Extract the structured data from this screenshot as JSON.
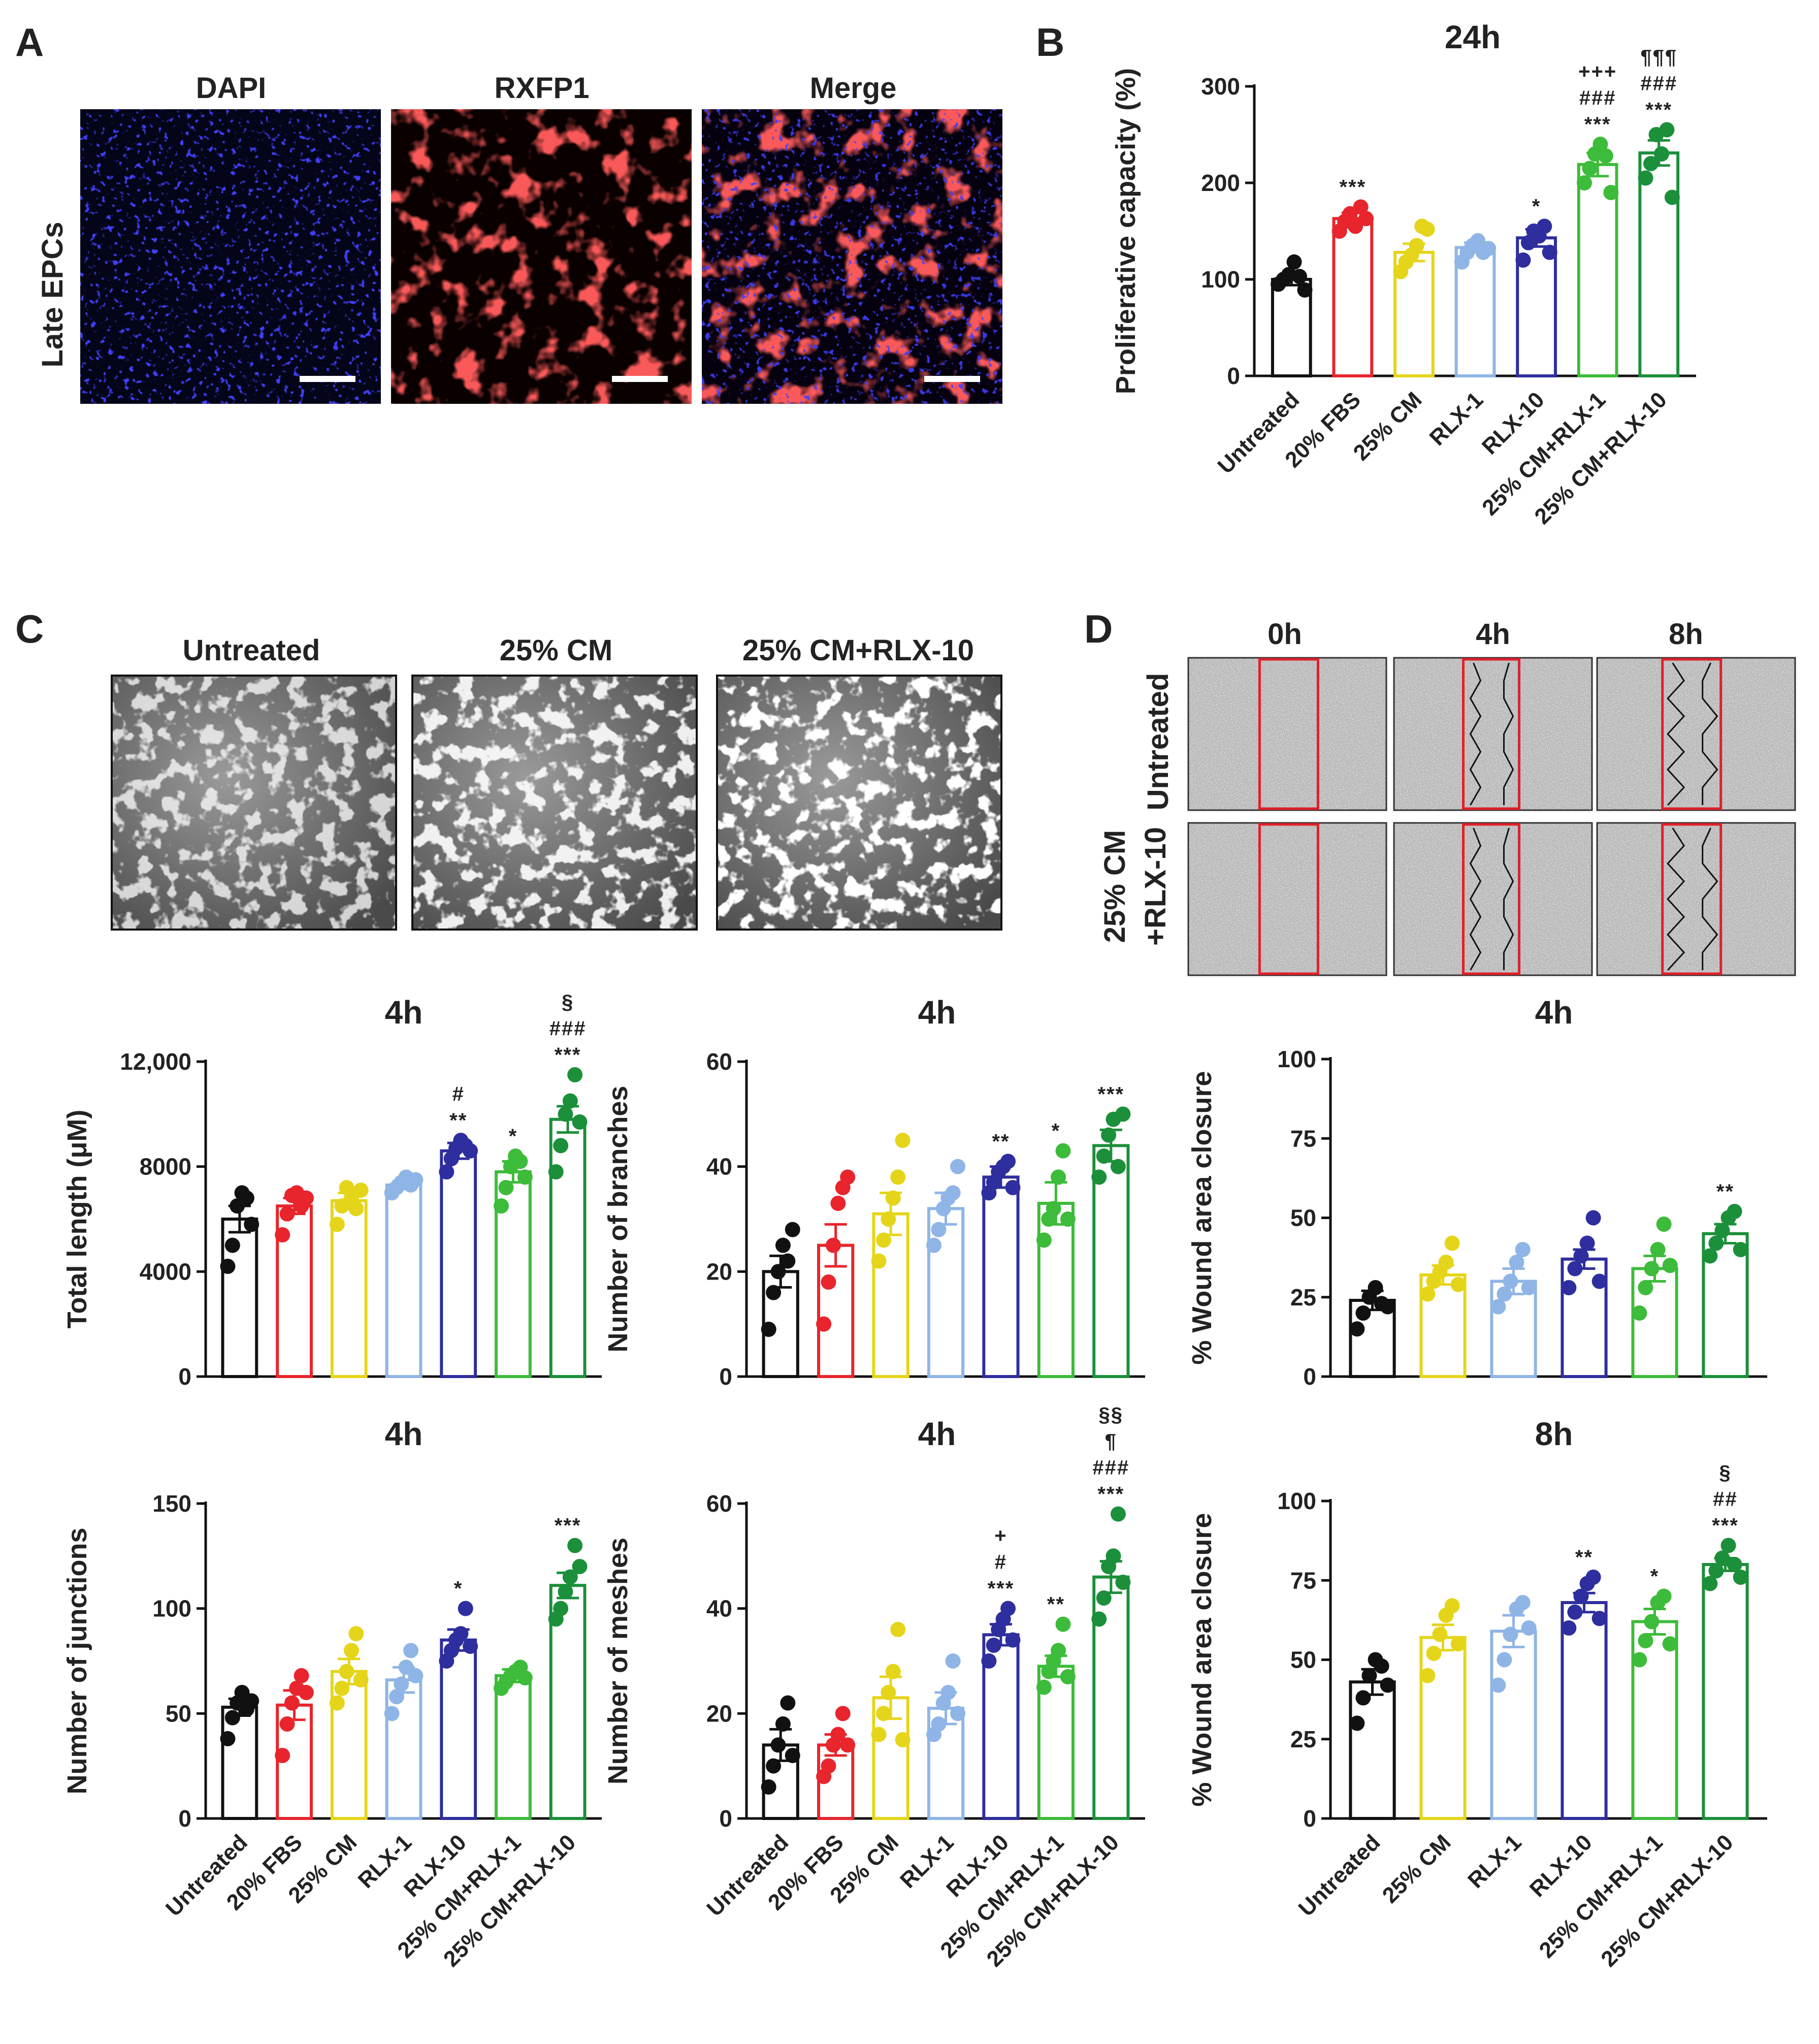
{
  "panels": {
    "A": {
      "letter": "A",
      "row_label": "Late EPCs",
      "image_labels": [
        "DAPI",
        "RXFP1",
        "Merge"
      ]
    },
    "C_images": {
      "letter": "C",
      "image_labels": [
        "Untreated",
        "25%  CM",
        "25%  CM+RLX-10"
      ]
    },
    "D_images": {
      "letter": "D",
      "time_labels": [
        "0h",
        "4h",
        "8h"
      ],
      "row_labels": [
        "Untreated",
        "25% CM",
        "+RLX-10"
      ]
    }
  },
  "colors": {
    "Untreated": "#111111",
    "20% FBS": "#e8252c",
    "25% CM": "#e5d51a",
    "RLX-1": "#8fb5e6",
    "RLX-10": "#2e2e9e",
    "25% CM+RLX-1": "#3dbb3a",
    "25% CM+RLX-10": "#1c8f3a",
    "scratch_box": "#e0202a"
  },
  "chart_data": [
    {
      "id": "B",
      "letter": "B",
      "type": "bar",
      "title": "24h",
      "ylabel": "Proliferative capacity (%)",
      "ylim": [
        0,
        300
      ],
      "yticks": [
        "0",
        "100",
        "200",
        "300"
      ],
      "ytick_values": [
        0,
        100,
        200,
        300
      ],
      "categories": [
        "Untreated",
        "20% FBS",
        "25% CM",
        "RLX-1",
        "RLX-10",
        "25% CM+RLX-1",
        "25% CM+RLX-10"
      ],
      "values": [
        100,
        163,
        128,
        133,
        143,
        219,
        231
      ],
      "sem": [
        6,
        6,
        9,
        5,
        9,
        12,
        13
      ],
      "points": [
        [
          95,
          100,
          105,
          118,
          103,
          89
        ],
        [
          150,
          160,
          168,
          155,
          175,
          163
        ],
        [
          108,
          118,
          125,
          135,
          155,
          152
        ],
        [
          118,
          128,
          135,
          140,
          128,
          132
        ],
        [
          120,
          138,
          150,
          145,
          155,
          128
        ],
        [
          200,
          215,
          230,
          240,
          228,
          190
        ],
        [
          205,
          220,
          250,
          230,
          255,
          185
        ]
      ],
      "significance": [
        [],
        [
          "***"
        ],
        [],
        [],
        [
          "*"
        ],
        [
          "+++",
          "###",
          "***"
        ],
        [
          "¶¶¶",
          "###",
          "***"
        ]
      ]
    },
    {
      "id": "C1",
      "type": "bar",
      "title": "4h",
      "ylabel": "Total length (μM)",
      "ylim": [
        0,
        12000
      ],
      "yticks": [
        "0",
        "4000",
        "8000",
        "12,000"
      ],
      "ytick_values": [
        0,
        4000,
        8000,
        12000
      ],
      "categories": [
        "Untreated",
        "20% FBS",
        "25% CM",
        "RLX-1",
        "RLX-10",
        "25% CM+RLX-1",
        "25% CM+RLX-10"
      ],
      "values": [
        6000,
        6500,
        6700,
        7300,
        8600,
        7800,
        9800
      ],
      "sem": [
        500,
        300,
        300,
        150,
        300,
        400,
        500
      ],
      "points": [
        [
          4200,
          5000,
          6500,
          7000,
          6800,
          5800
        ],
        [
          5400,
          6200,
          6900,
          7000,
          6500,
          6800
        ],
        [
          5800,
          6500,
          7200,
          6800,
          6400,
          7100
        ],
        [
          7000,
          7200,
          7400,
          7600,
          7300,
          7500
        ],
        [
          7800,
          8300,
          8700,
          9000,
          8800,
          8600
        ],
        [
          6500,
          7200,
          8000,
          8400,
          8200,
          7600
        ],
        [
          7800,
          8800,
          10000,
          10500,
          11500,
          9700
        ]
      ],
      "significance": [
        [],
        [],
        [],
        [],
        [
          "#",
          "**"
        ],
        [
          "*"
        ],
        [
          "§",
          "###",
          "***"
        ]
      ]
    },
    {
      "id": "C2",
      "type": "bar",
      "title": "4h",
      "ylabel": "Number of branches",
      "ylim": [
        0,
        60
      ],
      "yticks": [
        "0",
        "20",
        "40",
        "60"
      ],
      "ytick_values": [
        0,
        20,
        40,
        60
      ],
      "categories": [
        "Untreated",
        "20% FBS",
        "25% CM",
        "RLX-1",
        "RLX-10",
        "25% CM+RLX-1",
        "25% CM+RLX-10"
      ],
      "values": [
        20,
        25,
        31,
        32,
        38,
        33,
        44
      ],
      "sem": [
        3,
        4,
        4,
        3,
        2,
        4,
        3
      ],
      "points": [
        [
          9,
          16,
          20,
          25,
          22,
          28
        ],
        [
          10,
          18,
          25,
          33,
          36,
          38
        ],
        [
          22,
          26,
          30,
          34,
          38,
          45
        ],
        [
          25,
          28,
          32,
          34,
          35,
          40
        ],
        [
          35,
          37,
          39,
          40,
          41,
          36
        ],
        [
          26,
          30,
          32,
          38,
          43,
          30
        ],
        [
          38,
          42,
          46,
          49,
          40,
          50
        ]
      ],
      "significance": [
        [],
        [],
        [],
        [],
        [
          "**"
        ],
        [
          "*"
        ],
        [
          "***"
        ]
      ]
    },
    {
      "id": "C3",
      "type": "bar",
      "title": "4h",
      "ylabel": "Number of junctions",
      "ylim": [
        0,
        150
      ],
      "yticks": [
        "0",
        "50",
        "100",
        "150"
      ],
      "ytick_values": [
        0,
        50,
        100,
        150
      ],
      "categories": [
        "Untreated",
        "20% FBS",
        "25% CM",
        "RLX-1",
        "RLX-10",
        "25% CM+RLX-1",
        "25% CM+RLX-10"
      ],
      "values": [
        53,
        54,
        70,
        66,
        85,
        68,
        111
      ],
      "sem": [
        4,
        7,
        6,
        6,
        5,
        3,
        6
      ],
      "points": [
        [
          38,
          48,
          55,
          60,
          52,
          56
        ],
        [
          30,
          45,
          55,
          62,
          68,
          60
        ],
        [
          55,
          62,
          70,
          80,
          88,
          66
        ],
        [
          50,
          58,
          64,
          72,
          80,
          68
        ],
        [
          75,
          80,
          85,
          88,
          100,
          82
        ],
        [
          62,
          65,
          68,
          70,
          72,
          67
        ],
        [
          95,
          100,
          108,
          115,
          130,
          120
        ]
      ],
      "significance": [
        [],
        [],
        [],
        [],
        [
          "*"
        ],
        [],
        [
          "***"
        ]
      ]
    },
    {
      "id": "C4",
      "type": "bar",
      "title": "4h",
      "ylabel": "Number of meshes",
      "ylim": [
        0,
        60
      ],
      "yticks": [
        "0",
        "20",
        "40",
        "60"
      ],
      "ytick_values": [
        0,
        20,
        40,
        60
      ],
      "categories": [
        "Untreated",
        "20% FBS",
        "25% CM",
        "RLX-1",
        "RLX-10",
        "25% CM+RLX-1",
        "25% CM+RLX-10"
      ],
      "values": [
        14,
        14,
        23,
        21,
        35,
        29,
        46
      ],
      "sem": [
        3,
        2,
        4,
        3,
        2,
        2,
        3
      ],
      "points": [
        [
          6,
          10,
          14,
          18,
          22,
          12
        ],
        [
          8,
          10,
          14,
          16,
          20,
          14
        ],
        [
          16,
          20,
          24,
          28,
          36,
          15
        ],
        [
          16,
          18,
          22,
          24,
          30,
          20
        ],
        [
          30,
          33,
          36,
          38,
          40,
          34
        ],
        [
          25,
          28,
          30,
          32,
          37,
          27
        ],
        [
          38,
          42,
          48,
          50,
          58,
          45
        ]
      ],
      "significance": [
        [],
        [],
        [],
        [],
        [
          "+",
          "#",
          "***"
        ],
        [
          "**"
        ],
        [
          "§§",
          "¶",
          "###",
          "***"
        ]
      ]
    },
    {
      "id": "D1",
      "type": "bar",
      "title": "4h",
      "ylabel": "% Wound area closure",
      "ylim": [
        0,
        100
      ],
      "yticks": [
        "0",
        "25",
        "50",
        "75",
        "100"
      ],
      "ytick_values": [
        0,
        25,
        50,
        75,
        100
      ],
      "categories": [
        "Untreated",
        "25% CM",
        "RLX-1",
        "RLX-10",
        "25% CM+RLX-1",
        "25% CM+RLX-10"
      ],
      "values": [
        24,
        32,
        30,
        37,
        34,
        45
      ],
      "sem": [
        3,
        3,
        4,
        3,
        4,
        3
      ],
      "points": [
        [
          15,
          20,
          25,
          28,
          23,
          22
        ],
        [
          26,
          30,
          33,
          36,
          42,
          29
        ],
        [
          22,
          26,
          30,
          36,
          40,
          28
        ],
        [
          28,
          34,
          38,
          42,
          50,
          30
        ],
        [
          20,
          28,
          34,
          40,
          48,
          35
        ],
        [
          38,
          42,
          46,
          50,
          52,
          40
        ]
      ],
      "significance": [
        [],
        [],
        [],
        [],
        [],
        [
          "**"
        ]
      ]
    },
    {
      "id": "D2",
      "type": "bar",
      "title": "8h",
      "ylabel": "% Wound area closure",
      "ylim": [
        0,
        100
      ],
      "yticks": [
        "0",
        "25",
        "50",
        "75",
        "100"
      ],
      "ytick_values": [
        0,
        25,
        50,
        75,
        100
      ],
      "categories": [
        "Untreated",
        "25% CM",
        "RLX-1",
        "RLX-10",
        "25% CM+RLX-1",
        "25% CM+RLX-10"
      ],
      "values": [
        43,
        57,
        59,
        68,
        62,
        80
      ],
      "sem": [
        4,
        4,
        5,
        3,
        4,
        2
      ],
      "points": [
        [
          30,
          38,
          45,
          50,
          48,
          42
        ],
        [
          45,
          52,
          58,
          64,
          67,
          55
        ],
        [
          42,
          50,
          58,
          66,
          68,
          60
        ],
        [
          60,
          65,
          70,
          74,
          76,
          63
        ],
        [
          50,
          56,
          62,
          68,
          70,
          55
        ],
        [
          74,
          78,
          82,
          86,
          80,
          76
        ]
      ],
      "significance": [
        [],
        [],
        [],
        [
          "**"
        ],
        [
          "*"
        ],
        [
          "§",
          "##",
          "***"
        ]
      ]
    }
  ]
}
